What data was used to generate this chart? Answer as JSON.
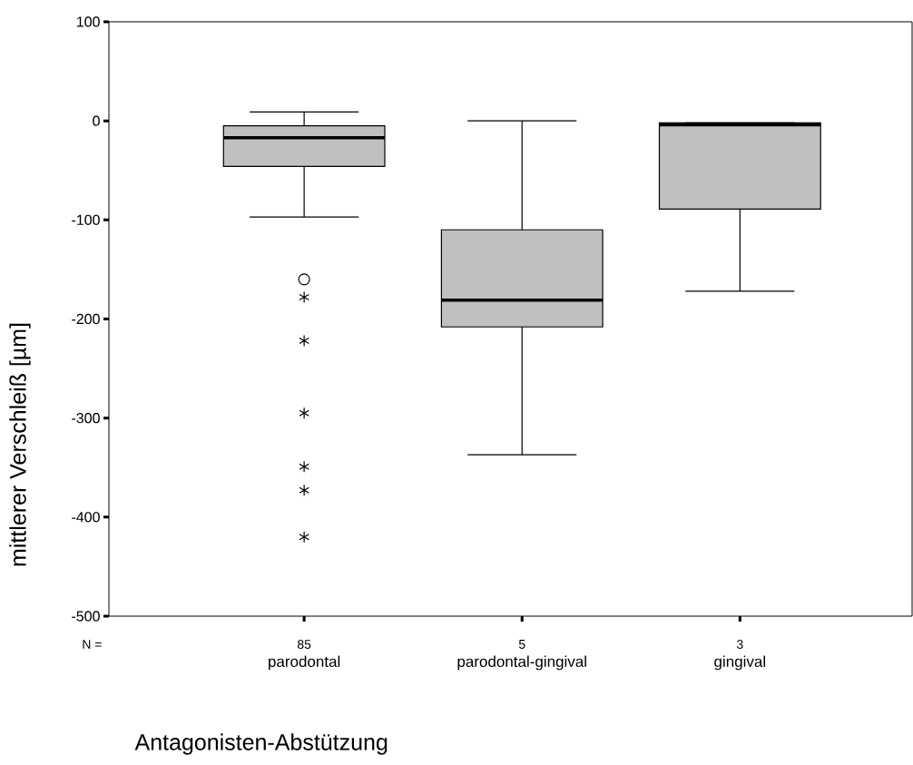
{
  "chart_data": {
    "type": "box",
    "categories": [
      "parodontal",
      "parodontal-gingival",
      "gingival"
    ],
    "boxes": [
      {
        "low": -97,
        "q1": -46,
        "median": -17,
        "q3": -5,
        "high": 9,
        "outliers": [
          -160,
          -178,
          -222,
          -295,
          -349,
          -373,
          -420
        ]
      },
      {
        "low": -337,
        "q1": -208,
        "median": -181,
        "q3": -110,
        "high": 0
      },
      {
        "low": -172,
        "q1": -89,
        "median": -4,
        "q3": -2,
        "high": -2
      }
    ],
    "color": "#c0c0c0",
    "ylim": [
      -500,
      100
    ],
    "yticks": [
      -500,
      -400,
      -300,
      -200,
      -100,
      0,
      100
    ],
    "ylabel": "mittlerer Verschleiß [µm]",
    "xlabel": "Antagonisten-Abstützung",
    "annotations": [
      "N =",
      "85",
      "5",
      "3"
    ]
  }
}
